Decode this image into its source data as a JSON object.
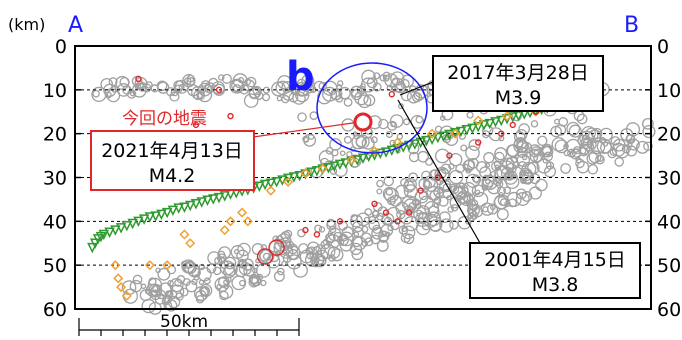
{
  "chart_data": {
    "type": "scatter",
    "title": "",
    "ylabel": "(km)",
    "ylim": [
      0,
      60
    ],
    "yticks": [
      "0",
      "10",
      "20",
      "30",
      "40",
      "50",
      "60"
    ],
    "y_inverted": true,
    "grid": "dashed horizontal at 10,20,30,40,50",
    "section_start_label": "A",
    "section_end_label": "B",
    "region_label": "b",
    "scale_bar_label": "50km",
    "series": [
      {
        "values": [
          [
            0.03,
            46
          ],
          [
            0.035,
            45
          ],
          [
            0.04,
            44
          ],
          [
            0.045,
            43.5
          ],
          [
            0.05,
            43
          ],
          [
            0.06,
            42.5
          ],
          [
            0.07,
            42
          ],
          [
            0.08,
            41.5
          ],
          [
            0.09,
            41
          ],
          [
            0.1,
            40.5
          ],
          [
            0.11,
            40
          ],
          [
            0.12,
            39.5
          ],
          [
            0.13,
            39
          ],
          [
            0.14,
            38.8
          ],
          [
            0.15,
            38.4
          ],
          [
            0.16,
            38
          ],
          [
            0.17,
            37.5
          ],
          [
            0.18,
            37
          ],
          [
            0.19,
            36.8
          ],
          [
            0.2,
            36.4
          ],
          [
            0.21,
            36
          ],
          [
            0.22,
            35.6
          ],
          [
            0.23,
            35.2
          ],
          [
            0.24,
            34.9
          ],
          [
            0.25,
            34.6
          ],
          [
            0.26,
            34.2
          ],
          [
            0.27,
            33.8
          ],
          [
            0.28,
            33.5
          ],
          [
            0.29,
            33.1
          ],
          [
            0.3,
            32.8
          ],
          [
            0.31,
            32.4
          ],
          [
            0.32,
            32
          ],
          [
            0.33,
            31.6
          ],
          [
            0.34,
            31.3
          ],
          [
            0.35,
            31
          ],
          [
            0.36,
            30.6
          ],
          [
            0.37,
            30.2
          ],
          [
            0.38,
            29.9
          ],
          [
            0.39,
            29.6
          ],
          [
            0.4,
            29.2
          ],
          [
            0.41,
            28.8
          ],
          [
            0.42,
            28.5
          ],
          [
            0.43,
            28.1
          ],
          [
            0.44,
            27.8
          ],
          [
            0.45,
            27.4
          ],
          [
            0.46,
            27
          ],
          [
            0.47,
            26.7
          ],
          [
            0.48,
            26.3
          ],
          [
            0.49,
            26
          ],
          [
            0.5,
            25.6
          ],
          [
            0.51,
            25.2
          ],
          [
            0.52,
            24.9
          ],
          [
            0.53,
            24.5
          ],
          [
            0.54,
            24.2
          ],
          [
            0.55,
            23.8
          ],
          [
            0.56,
            23.4
          ],
          [
            0.57,
            23.1
          ],
          [
            0.58,
            22.7
          ],
          [
            0.59,
            22.4
          ],
          [
            0.6,
            22
          ],
          [
            0.61,
            21.6
          ],
          [
            0.62,
            21.3
          ],
          [
            0.63,
            20.9
          ],
          [
            0.64,
            20.6
          ],
          [
            0.65,
            20.2
          ],
          [
            0.66,
            19.8
          ],
          [
            0.67,
            19.5
          ],
          [
            0.68,
            19.1
          ],
          [
            0.69,
            18.8
          ],
          [
            0.7,
            18.4
          ],
          [
            0.71,
            18
          ],
          [
            0.72,
            17.7
          ],
          [
            0.73,
            17.3
          ],
          [
            0.74,
            17
          ],
          [
            0.75,
            16.6
          ],
          [
            0.76,
            16.2
          ],
          [
            0.77,
            15.9
          ],
          [
            0.78,
            15.5
          ],
          [
            0.79,
            15.2
          ],
          [
            0.8,
            14.8
          ],
          [
            0.81,
            14.5
          ],
          [
            0.82,
            14.2
          ],
          [
            0.83,
            13.8
          ],
          [
            0.84,
            13.5
          ],
          [
            0.85,
            13.2
          ],
          [
            0.86,
            12.9
          ],
          [
            0.87,
            12.6
          ],
          [
            0.88,
            12.3
          ],
          [
            0.89,
            12
          ],
          [
            0.9,
            11.7
          ],
          [
            0.91,
            11.4
          ]
        ],
        "marker": "inverted-triangle",
        "color": "#2e9a2e"
      },
      {
        "values": [
          [
            0.07,
            50
          ],
          [
            0.075,
            53
          ],
          [
            0.08,
            55
          ],
          [
            0.09,
            57
          ],
          [
            0.13,
            50
          ],
          [
            0.16,
            50
          ],
          [
            0.19,
            43
          ],
          [
            0.2,
            45
          ],
          [
            0.26,
            42
          ],
          [
            0.27,
            40
          ],
          [
            0.29,
            38
          ],
          [
            0.3,
            40
          ],
          [
            0.34,
            33
          ],
          [
            0.37,
            31
          ],
          [
            0.4,
            29
          ],
          [
            0.43,
            28
          ],
          [
            0.48,
            26
          ],
          [
            0.52,
            24
          ],
          [
            0.56,
            22
          ],
          [
            0.62,
            20
          ],
          [
            0.66,
            20
          ],
          [
            0.7,
            17
          ],
          [
            0.75,
            16
          ],
          [
            0.8,
            15
          ],
          [
            0.84,
            14
          ],
          [
            0.88,
            12
          ],
          [
            0.91,
            10
          ]
        ],
        "marker": "diamond",
        "color": "#f0a030"
      },
      {
        "values": [
          [
            0.11,
            7.5
          ],
          [
            0.21,
            18
          ],
          [
            0.25,
            10
          ],
          [
            0.27,
            16
          ],
          [
            0.28,
            21
          ],
          [
            0.3,
            25
          ],
          [
            0.33,
            48
          ],
          [
            0.35,
            46
          ],
          [
            0.4,
            42
          ],
          [
            0.42,
            43
          ],
          [
            0.46,
            40
          ],
          [
            0.52,
            36
          ],
          [
            0.54,
            38
          ],
          [
            0.56,
            40
          ],
          [
            0.58,
            38
          ],
          [
            0.6,
            33
          ],
          [
            0.63,
            30
          ],
          [
            0.65,
            25
          ],
          [
            0.7,
            22
          ],
          [
            0.74,
            20
          ],
          [
            0.76,
            18
          ],
          [
            0.8,
            15
          ],
          [
            0.83,
            12
          ],
          [
            0.86,
            12
          ],
          [
            0.9,
            10
          ],
          [
            0.55,
            11
          ]
        ],
        "marker": "small-red-circle",
        "color": "#e0282a"
      }
    ],
    "background_cloud_color": "#a0a0a0",
    "annotations": [
      {
        "date": "2021年4月13日",
        "magnitude": "M4.2",
        "note": "今回の地震",
        "x": 0.56,
        "y": 17.5
      },
      {
        "date": "2017年3月28日",
        "magnitude": "M3.9",
        "x": 0.605,
        "y": 10
      },
      {
        "date": "2001年4月15日",
        "magnitude": "M3.8",
        "x": 0.605,
        "y": 11
      }
    ]
  },
  "colors": {
    "cloud": "#a0a0a0",
    "red": "#e0282a",
    "blue": "#1a1aff",
    "green": "#2e9a2e",
    "orange": "#f0a030"
  }
}
